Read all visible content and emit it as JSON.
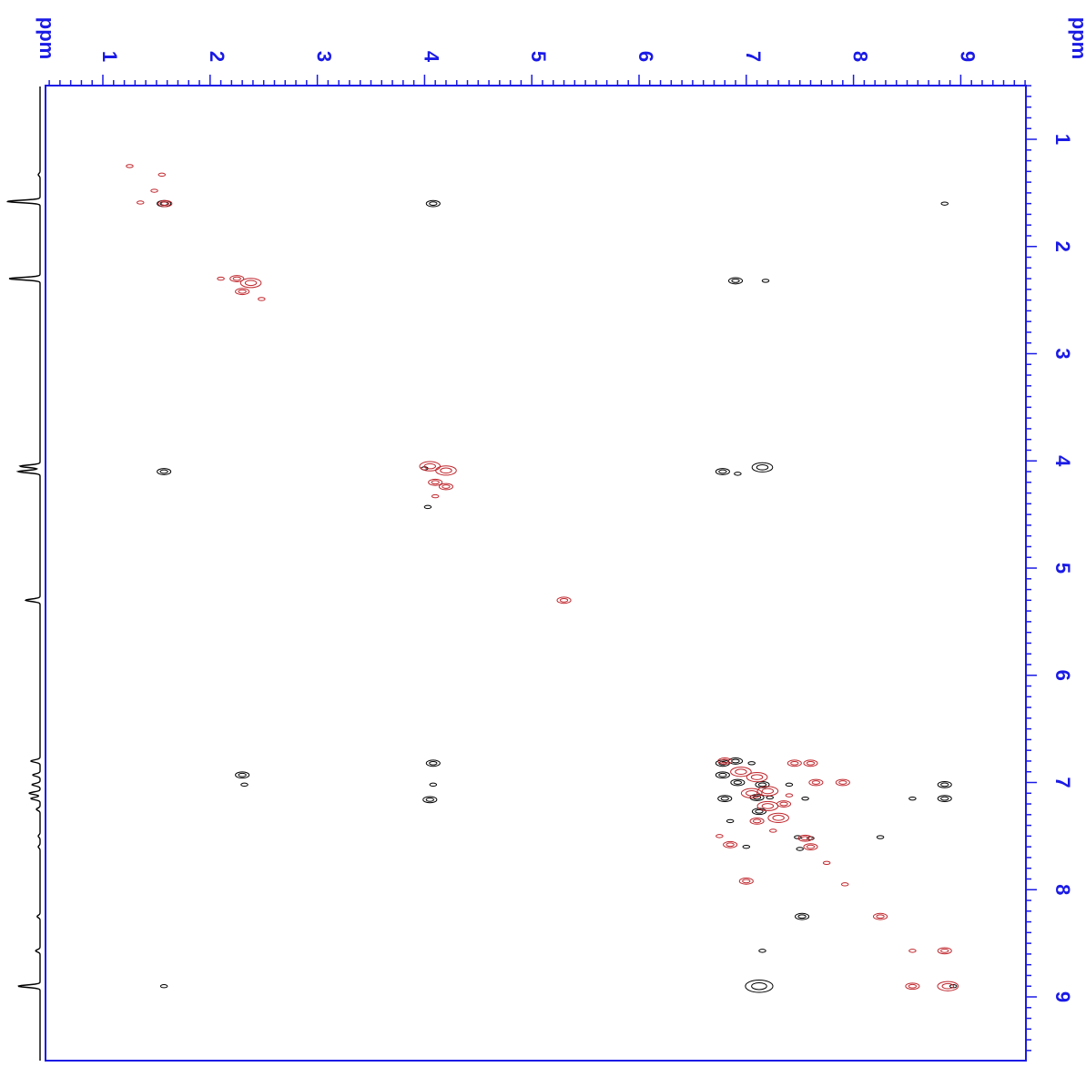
{
  "chart_data": {
    "type": "scatter",
    "subtype": "2D NMR contour plot (homonuclear correlation)",
    "title": "",
    "xlabel": "ppm",
    "ylabel": "ppm",
    "x_axis": {
      "position": "top",
      "reversed": false,
      "range": [
        0.5,
        9.6
      ],
      "ticks": [
        1,
        2,
        3,
        4,
        5,
        6,
        7,
        8,
        9
      ],
      "tick_labels": [
        "1",
        "2",
        "3",
        "4",
        "5",
        "6",
        "7",
        "8",
        "9"
      ]
    },
    "y_axis": {
      "position": "right",
      "reversed": true,
      "range": [
        0.5,
        9.6
      ],
      "ticks": [
        1,
        2,
        3,
        4,
        5,
        6,
        7,
        8,
        9
      ],
      "tick_labels": [
        "1",
        "2",
        "3",
        "4",
        "5",
        "6",
        "7",
        "8",
        "9"
      ]
    },
    "grid": false,
    "colors": {
      "axis": "#1a1ae6",
      "positive": "#000000",
      "negative": "#c0272d",
      "projection": "#000000"
    },
    "series": [
      {
        "name": "",
        "sign": "positive",
        "points": [
          {
            "x": 1.57,
            "y": 1.6,
            "r": 0.02
          },
          {
            "x": 4.08,
            "y": 1.6,
            "r": 0.02
          },
          {
            "x": 8.85,
            "y": 1.6,
            "r": 0.01
          },
          {
            "x": 6.9,
            "y": 2.32,
            "r": 0.02
          },
          {
            "x": 7.18,
            "y": 2.32,
            "r": 0.01
          },
          {
            "x": 1.57,
            "y": 4.1,
            "r": 0.02
          },
          {
            "x": 6.78,
            "y": 4.1,
            "r": 0.02
          },
          {
            "x": 7.15,
            "y": 4.06,
            "r": 0.03
          },
          {
            "x": 6.92,
            "y": 4.12,
            "r": 0.01
          },
          {
            "x": 4.0,
            "y": 4.07,
            "r": 0.01
          },
          {
            "x": 4.03,
            "y": 4.43,
            "r": 0.01
          },
          {
            "x": 2.3,
            "y": 6.93,
            "r": 0.02
          },
          {
            "x": 2.32,
            "y": 7.02,
            "r": 0.01
          },
          {
            "x": 4.08,
            "y": 6.82,
            "r": 0.02
          },
          {
            "x": 4.08,
            "y": 7.02,
            "r": 0.01
          },
          {
            "x": 4.05,
            "y": 7.16,
            "r": 0.02
          },
          {
            "x": 6.78,
            "y": 6.82,
            "r": 0.02
          },
          {
            "x": 6.9,
            "y": 6.8,
            "r": 0.02
          },
          {
            "x": 7.05,
            "y": 6.82,
            "r": 0.01
          },
          {
            "x": 6.78,
            "y": 6.93,
            "r": 0.02
          },
          {
            "x": 6.92,
            "y": 7.0,
            "r": 0.02
          },
          {
            "x": 7.15,
            "y": 7.02,
            "r": 0.02
          },
          {
            "x": 7.4,
            "y": 7.02,
            "r": 0.01
          },
          {
            "x": 6.8,
            "y": 7.15,
            "r": 0.02
          },
          {
            "x": 7.1,
            "y": 7.14,
            "r": 0.02
          },
          {
            "x": 7.22,
            "y": 7.14,
            "r": 0.01
          },
          {
            "x": 7.55,
            "y": 7.15,
            "r": 0.01
          },
          {
            "x": 7.12,
            "y": 7.27,
            "r": 0.02
          },
          {
            "x": 6.85,
            "y": 7.36,
            "r": 0.01
          },
          {
            "x": 7.0,
            "y": 7.6,
            "r": 0.01
          },
          {
            "x": 7.48,
            "y": 7.51,
            "r": 0.01
          },
          {
            "x": 7.6,
            "y": 7.52,
            "r": 0.01
          },
          {
            "x": 8.25,
            "y": 7.51,
            "r": 0.01
          },
          {
            "x": 7.5,
            "y": 7.62,
            "r": 0.01
          },
          {
            "x": 8.85,
            "y": 7.02,
            "r": 0.02
          },
          {
            "x": 8.85,
            "y": 7.15,
            "r": 0.02
          },
          {
            "x": 8.55,
            "y": 7.15,
            "r": 0.01
          },
          {
            "x": 7.52,
            "y": 8.25,
            "r": 0.02
          },
          {
            "x": 7.15,
            "y": 8.57,
            "r": 0.01
          },
          {
            "x": 1.57,
            "y": 8.9,
            "r": 0.01
          },
          {
            "x": 7.12,
            "y": 8.9,
            "r": 0.04
          },
          {
            "x": 8.93,
            "y": 8.9,
            "r": 0.01
          }
        ]
      },
      {
        "name": "",
        "sign": "negative",
        "points": [
          {
            "x": 1.25,
            "y": 1.25,
            "r": 0.01
          },
          {
            "x": 1.55,
            "y": 1.33,
            "r": 0.01
          },
          {
            "x": 1.48,
            "y": 1.48,
            "r": 0.01
          },
          {
            "x": 1.35,
            "y": 1.59,
            "r": 0.01
          },
          {
            "x": 1.58,
            "y": 1.6,
            "r": 0.02
          },
          {
            "x": 2.1,
            "y": 2.3,
            "r": 0.01
          },
          {
            "x": 2.25,
            "y": 2.3,
            "r": 0.02
          },
          {
            "x": 2.38,
            "y": 2.34,
            "r": 0.03
          },
          {
            "x": 2.3,
            "y": 2.42,
            "r": 0.02
          },
          {
            "x": 2.48,
            "y": 2.49,
            "r": 0.01
          },
          {
            "x": 4.05,
            "y": 4.05,
            "r": 0.03
          },
          {
            "x": 4.2,
            "y": 4.09,
            "r": 0.03
          },
          {
            "x": 4.1,
            "y": 4.2,
            "r": 0.02
          },
          {
            "x": 4.2,
            "y": 4.24,
            "r": 0.02
          },
          {
            "x": 4.1,
            "y": 4.33,
            "r": 0.01
          },
          {
            "x": 5.3,
            "y": 5.3,
            "r": 0.02
          },
          {
            "x": 6.8,
            "y": 6.8,
            "r": 0.02
          },
          {
            "x": 6.95,
            "y": 6.9,
            "r": 0.03
          },
          {
            "x": 7.1,
            "y": 6.95,
            "r": 0.03
          },
          {
            "x": 7.05,
            "y": 7.1,
            "r": 0.03
          },
          {
            "x": 7.2,
            "y": 7.08,
            "r": 0.03
          },
          {
            "x": 7.2,
            "y": 7.22,
            "r": 0.03
          },
          {
            "x": 7.35,
            "y": 7.2,
            "r": 0.02
          },
          {
            "x": 7.3,
            "y": 7.33,
            "r": 0.03
          },
          {
            "x": 7.1,
            "y": 7.36,
            "r": 0.02
          },
          {
            "x": 7.45,
            "y": 6.82,
            "r": 0.02
          },
          {
            "x": 7.6,
            "y": 6.82,
            "r": 0.02
          },
          {
            "x": 7.65,
            "y": 7.0,
            "r": 0.02
          },
          {
            "x": 7.9,
            "y": 7.0,
            "r": 0.02
          },
          {
            "x": 7.4,
            "y": 7.12,
            "r": 0.01
          },
          {
            "x": 7.55,
            "y": 7.52,
            "r": 0.02
          },
          {
            "x": 7.6,
            "y": 7.6,
            "r": 0.02
          },
          {
            "x": 7.25,
            "y": 7.45,
            "r": 0.01
          },
          {
            "x": 6.85,
            "y": 7.58,
            "r": 0.02
          },
          {
            "x": 6.75,
            "y": 7.5,
            "r": 0.01
          },
          {
            "x": 7.75,
            "y": 7.75,
            "r": 0.01
          },
          {
            "x": 7.0,
            "y": 7.92,
            "r": 0.02
          },
          {
            "x": 7.92,
            "y": 7.95,
            "r": 0.01
          },
          {
            "x": 8.25,
            "y": 8.25,
            "r": 0.02
          },
          {
            "x": 8.55,
            "y": 8.57,
            "r": 0.01
          },
          {
            "x": 8.85,
            "y": 8.57,
            "r": 0.02
          },
          {
            "x": 8.55,
            "y": 8.9,
            "r": 0.02
          },
          {
            "x": 8.88,
            "y": 8.9,
            "r": 0.03
          }
        ]
      }
    ],
    "projection_1d": {
      "peaks": [
        {
          "ppm": 1.33,
          "h": 0.05
        },
        {
          "ppm": 1.58,
          "h": 0.9
        },
        {
          "ppm": 2.3,
          "h": 0.85
        },
        {
          "ppm": 4.05,
          "h": 0.55
        },
        {
          "ppm": 4.1,
          "h": 0.6
        },
        {
          "ppm": 5.3,
          "h": 0.4
        },
        {
          "ppm": 6.8,
          "h": 0.25
        },
        {
          "ppm": 6.93,
          "h": 0.2
        },
        {
          "ppm": 7.02,
          "h": 0.22
        },
        {
          "ppm": 7.1,
          "h": 0.3
        },
        {
          "ppm": 7.15,
          "h": 0.25
        },
        {
          "ppm": 7.25,
          "h": 0.1
        },
        {
          "ppm": 7.5,
          "h": 0.05
        },
        {
          "ppm": 7.6,
          "h": 0.05
        },
        {
          "ppm": 8.25,
          "h": 0.08
        },
        {
          "ppm": 8.57,
          "h": 0.12
        },
        {
          "ppm": 8.9,
          "h": 0.6
        }
      ]
    }
  }
}
